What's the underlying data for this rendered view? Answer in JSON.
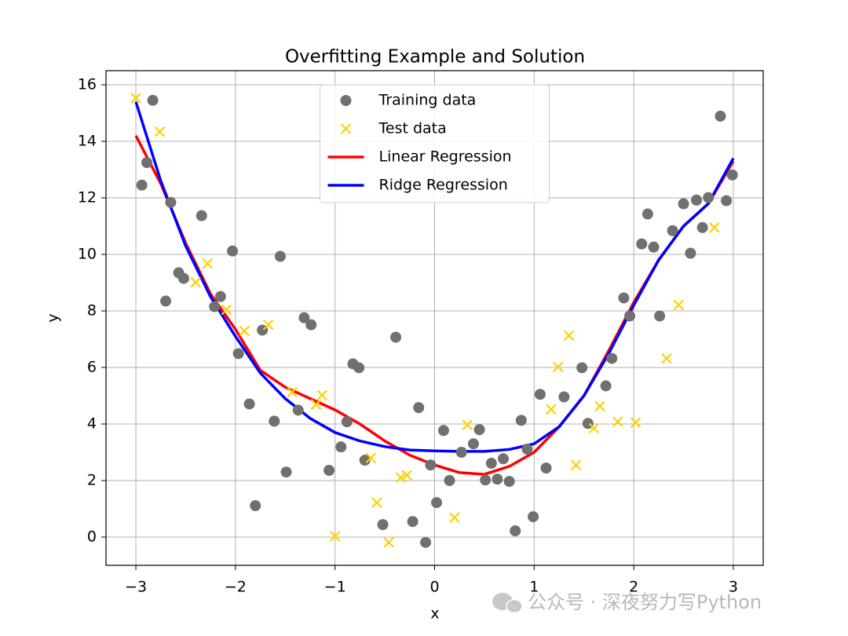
{
  "chart_data": {
    "type": "scatter",
    "title": "Overfitting Example and Solution",
    "xlabel": "x",
    "ylabel": "y",
    "xlim": [
      -3.3,
      3.3
    ],
    "ylim": [
      -1,
      16.5
    ],
    "xticks": [
      {
        "value": -3,
        "label": "−3"
      },
      {
        "value": -2,
        "label": "−2"
      },
      {
        "value": -1,
        "label": "−1"
      },
      0,
      1,
      2,
      3
    ],
    "yticks": [
      0,
      2,
      4,
      6,
      8,
      10,
      12,
      14,
      16
    ],
    "grid": true,
    "legend": "upper center",
    "watermark": "公众号 · 深夜努力写Python",
    "series": [
      {
        "name": "Training data",
        "kind": "scatter",
        "marker": "circle",
        "color": "#707070",
        "x": [
          -2.83,
          -2.94,
          -2.89,
          -2.65,
          -2.7,
          -2.57,
          -2.52,
          -2.34,
          -2.21,
          -2.15,
          -2.03,
          -1.97,
          -1.86,
          -1.8,
          -1.73,
          -1.61,
          -1.55,
          -1.49,
          -1.37,
          -1.31,
          -1.24,
          -1.06,
          -0.94,
          -0.88,
          -0.82,
          -0.76,
          -0.7,
          -0.52,
          -0.39,
          -0.22,
          -0.16,
          -0.09,
          -0.04,
          0.02,
          0.09,
          0.15,
          0.27,
          0.39,
          0.45,
          0.51,
          0.57,
          0.63,
          0.69,
          0.75,
          0.81,
          0.87,
          0.93,
          0.99,
          1.06,
          1.12,
          1.3,
          1.48,
          1.54,
          1.72,
          1.78,
          1.9,
          1.96,
          2.08,
          2.14,
          2.2,
          2.26,
          2.39,
          2.5,
          2.57,
          2.63,
          2.69,
          2.75,
          2.87,
          2.93,
          2.99
        ],
        "values": [
          15.45,
          12.45,
          13.25,
          11.84,
          8.35,
          9.35,
          9.15,
          11.37,
          8.15,
          8.51,
          10.12,
          6.49,
          4.71,
          1.11,
          7.32,
          4.1,
          9.93,
          2.3,
          4.49,
          7.76,
          7.51,
          2.36,
          3.19,
          4.08,
          6.13,
          5.99,
          2.72,
          0.44,
          7.07,
          0.55,
          4.58,
          -0.19,
          2.55,
          1.22,
          3.77,
          2.0,
          3.0,
          3.3,
          3.8,
          2.02,
          2.61,
          2.05,
          2.77,
          1.97,
          0.22,
          4.13,
          3.11,
          0.72,
          5.05,
          2.44,
          4.96,
          5.99,
          4.02,
          5.35,
          6.32,
          8.46,
          7.82,
          10.37,
          11.43,
          10.26,
          7.82,
          10.84,
          11.79,
          10.04,
          11.92,
          10.95,
          12.01,
          14.89,
          11.9,
          12.81
        ]
      },
      {
        "name": "Test data",
        "kind": "scatter",
        "marker": "x",
        "color": "#ffd000",
        "x": [
          -3.0,
          -2.76,
          -2.4,
          -2.28,
          -2.09,
          -1.91,
          -1.67,
          -1.43,
          -1.19,
          -1.13,
          -1.0,
          -0.64,
          -0.58,
          -0.46,
          -0.34,
          -0.28,
          0.2,
          0.33,
          1.17,
          1.24,
          1.35,
          1.42,
          1.6,
          1.66,
          1.84,
          2.02,
          2.33,
          2.45,
          2.81
        ],
        "values": [
          15.53,
          14.34,
          9.01,
          9.68,
          8.04,
          7.29,
          7.51,
          5.13,
          4.69,
          5.02,
          0.03,
          2.8,
          1.22,
          -0.19,
          2.11,
          2.19,
          0.69,
          3.97,
          4.52,
          6.02,
          7.13,
          2.55,
          3.85,
          4.63,
          4.08,
          4.05,
          6.32,
          8.21,
          10.95
        ]
      },
      {
        "name": "Linear Regression",
        "kind": "line",
        "color": "#ff0000",
        "x": [
          -3,
          -2.75,
          -2.5,
          -2.25,
          -2,
          -1.75,
          -1.5,
          -1.25,
          -1,
          -0.75,
          -0.5,
          -0.25,
          0,
          0.25,
          0.5,
          0.75,
          1,
          1.25,
          1.5,
          1.75,
          2,
          2.25,
          2.5,
          2.75,
          3
        ],
        "values": [
          14.2,
          12.5,
          10.4,
          8.6,
          7.35,
          5.9,
          5.3,
          4.9,
          4.5,
          4.0,
          3.4,
          2.9,
          2.55,
          2.28,
          2.22,
          2.5,
          3.0,
          3.9,
          5.0,
          6.6,
          8.3,
          9.8,
          11.0,
          11.8,
          13.3
        ]
      },
      {
        "name": "Ridge Regression",
        "kind": "line",
        "color": "#0000ff",
        "x": [
          -3,
          -2.75,
          -2.5,
          -2.25,
          -2,
          -1.75,
          -1.5,
          -1.25,
          -1,
          -0.75,
          -0.5,
          -0.25,
          0,
          0.25,
          0.5,
          0.75,
          1,
          1.25,
          1.5,
          1.75,
          2,
          2.25,
          2.5,
          2.75,
          3
        ],
        "values": [
          15.4,
          12.6,
          10.3,
          8.5,
          7.1,
          5.8,
          4.9,
          4.2,
          3.7,
          3.4,
          3.2,
          3.08,
          3.05,
          3.03,
          3.03,
          3.1,
          3.3,
          3.9,
          5.0,
          6.5,
          8.2,
          9.8,
          11.0,
          11.8,
          13.4
        ]
      }
    ]
  }
}
